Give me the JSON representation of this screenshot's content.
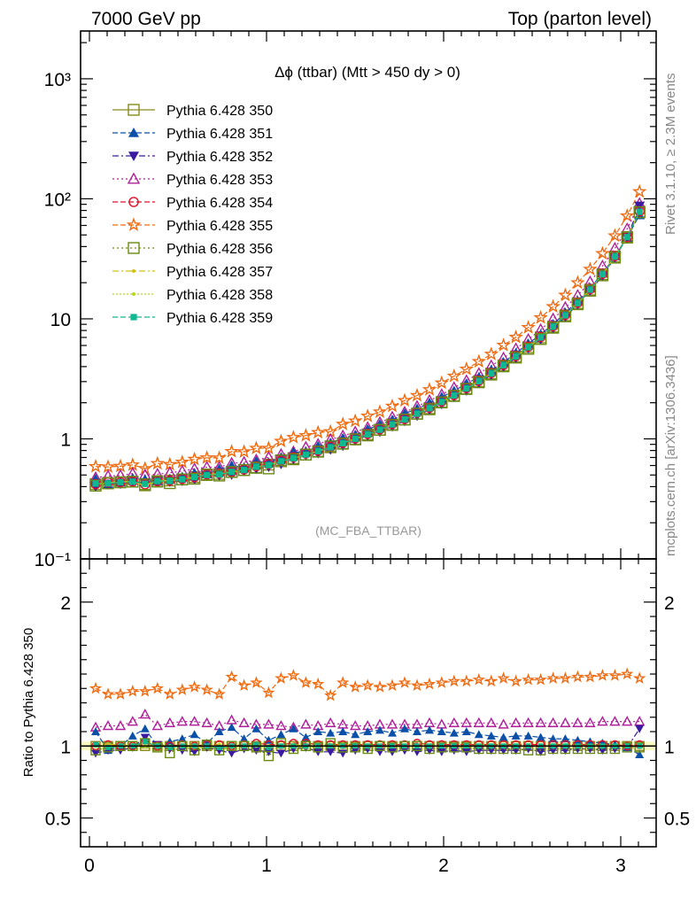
{
  "header": {
    "left": "7000 GeV pp",
    "right": "Top (parton level)"
  },
  "side_labels": {
    "rivet": "Rivet 3.1.10, ≥ 2.3M events",
    "mcplots": "mcplots.cern.ch [arXiv:1306.3436]"
  },
  "plot": {
    "title": "Δϕ (ttbar) (Mtt > 450 dy > 0)",
    "watermark": "(MC_FBA_TTBAR)"
  },
  "ratio": {
    "ylabel": "Ratio to Pythia 6.428 350"
  },
  "chart_data": {
    "type": "line",
    "title": "Δϕ (ttbar) (Mtt > 450 dy > 0)",
    "main_yscale": "log",
    "main_ylim": [
      0.1,
      2500
    ],
    "main_ytick_labels": [
      "10⁻¹",
      "1",
      "10",
      "10²",
      "10³"
    ],
    "ratio_ylim": [
      0.3,
      2.3
    ],
    "ratio_ytick_labels": [
      "0.5",
      "1",
      "2"
    ],
    "xlim": [
      -0.05,
      3.2
    ],
    "xtick_labels": [
      "0",
      "1",
      "2",
      "3"
    ],
    "x": [
      0.035,
      0.105,
      0.175,
      0.244,
      0.314,
      0.384,
      0.454,
      0.524,
      0.593,
      0.663,
      0.733,
      0.803,
      0.873,
      0.942,
      1.012,
      1.082,
      1.152,
      1.222,
      1.291,
      1.361,
      1.431,
      1.501,
      1.571,
      1.64,
      1.71,
      1.78,
      1.85,
      1.92,
      1.989,
      2.059,
      2.129,
      2.199,
      2.269,
      2.338,
      2.408,
      2.478,
      2.548,
      2.618,
      2.687,
      2.757,
      2.827,
      2.897,
      2.967,
      3.036,
      3.106
    ],
    "baseline_values": [
      0.42,
      0.43,
      0.435,
      0.44,
      0.41,
      0.445,
      0.45,
      0.46,
      0.48,
      0.5,
      0.51,
      0.53,
      0.55,
      0.58,
      0.61,
      0.65,
      0.69,
      0.74,
      0.79,
      0.85,
      0.92,
      1.0,
      1.09,
      1.19,
      1.32,
      1.45,
      1.62,
      1.8,
      2.03,
      2.3,
      2.63,
      3.02,
      3.5,
      4.1,
      4.85,
      5.8,
      7.0,
      8.6,
      10.7,
      13.5,
      17.5,
      23.5,
      33.0,
      48.0,
      78.0
    ],
    "legend_position": "top-left",
    "series": [
      {
        "name": "Pythia 6.428 350",
        "color": "#8a8a1e",
        "marker": "open-square",
        "dash": "",
        "ratio": [
          1.0,
          1.0,
          1.0,
          1.0,
          1.0,
          1.0,
          1.0,
          1.0,
          1.0,
          1.0,
          1.0,
          1.0,
          1.0,
          1.0,
          1.0,
          1.0,
          1.0,
          1.0,
          1.0,
          1.0,
          1.0,
          1.0,
          1.0,
          1.0,
          1.0,
          1.0,
          1.0,
          1.0,
          1.0,
          1.0,
          1.0,
          1.0,
          1.0,
          1.0,
          1.0,
          1.0,
          1.0,
          1.0,
          1.0,
          1.0,
          1.0,
          1.0,
          1.0,
          1.0,
          1.0
        ]
      },
      {
        "name": "Pythia 6.428 351",
        "color": "#0a50a8",
        "marker": "filled-triangle-up",
        "dash": "6,3",
        "ratio": [
          1.1,
          0.97,
          1.0,
          1.07,
          1.12,
          1.0,
          1.03,
          1.05,
          1.08,
          1.02,
          1.1,
          1.13,
          1.05,
          1.12,
          1.04,
          1.08,
          1.12,
          1.06,
          1.1,
          1.09,
          1.1,
          1.08,
          1.1,
          1.11,
          1.09,
          1.12,
          1.1,
          1.11,
          1.1,
          1.09,
          1.1,
          1.08,
          1.07,
          1.06,
          1.07,
          1.07,
          1.06,
          1.05,
          1.05,
          1.04,
          1.03,
          1.02,
          1.01,
          0.99,
          0.94
        ]
      },
      {
        "name": "Pythia 6.428 352",
        "color": "#3a1aa0",
        "marker": "filled-triangle-down",
        "dash": "7,3,2,3",
        "ratio": [
          0.95,
          0.97,
          0.97,
          0.99,
          1.06,
          1.01,
          0.98,
          0.97,
          0.96,
          0.99,
          0.97,
          0.95,
          0.98,
          0.97,
          0.96,
          0.95,
          0.98,
          0.99,
          0.96,
          0.96,
          0.95,
          0.97,
          0.98,
          0.96,
          0.96,
          0.97,
          0.96,
          0.97,
          0.96,
          0.97,
          0.96,
          0.97,
          0.97,
          0.97,
          0.97,
          0.98,
          0.96,
          0.97,
          0.97,
          0.98,
          0.98,
          0.97,
          0.98,
          0.99,
          1.12
        ]
      },
      {
        "name": "Pythia 6.428 353",
        "color": "#b0209a",
        "marker": "open-triangle-up",
        "dash": "2,3",
        "ratio": [
          1.13,
          1.14,
          1.14,
          1.17,
          1.22,
          1.14,
          1.16,
          1.17,
          1.17,
          1.16,
          1.14,
          1.18,
          1.16,
          1.15,
          1.15,
          1.14,
          1.13,
          1.15,
          1.14,
          1.16,
          1.15,
          1.14,
          1.14,
          1.15,
          1.15,
          1.15,
          1.15,
          1.16,
          1.15,
          1.16,
          1.16,
          1.16,
          1.16,
          1.15,
          1.16,
          1.16,
          1.16,
          1.16,
          1.16,
          1.16,
          1.16,
          1.17,
          1.17,
          1.17,
          1.17
        ]
      },
      {
        "name": "Pythia 6.428 354",
        "color": "#e0102a",
        "marker": "open-circle",
        "dash": "6,3",
        "ratio": [
          1.0,
          1.01,
          1.0,
          1.0,
          1.02,
          1.0,
          1.0,
          1.01,
          1.0,
          1.01,
          1.01,
          1.0,
          1.01,
          1.02,
          1.01,
          1.01,
          1.02,
          1.02,
          1.01,
          1.01,
          1.01,
          1.01,
          1.01,
          1.01,
          1.01,
          1.01,
          1.02,
          1.01,
          1.01,
          1.01,
          1.01,
          1.01,
          1.01,
          1.01,
          1.01,
          1.01,
          1.01,
          1.01,
          1.01,
          1.01,
          1.01,
          1.01,
          1.01,
          1.0,
          1.01
        ]
      },
      {
        "name": "Pythia 6.428 355",
        "color": "#f06a10",
        "marker": "open-star",
        "dash": "6,3",
        "ratio": [
          1.4,
          1.36,
          1.36,
          1.38,
          1.38,
          1.4,
          1.36,
          1.39,
          1.41,
          1.39,
          1.36,
          1.48,
          1.42,
          1.44,
          1.37,
          1.47,
          1.49,
          1.44,
          1.43,
          1.35,
          1.44,
          1.41,
          1.42,
          1.41,
          1.42,
          1.44,
          1.42,
          1.43,
          1.44,
          1.45,
          1.45,
          1.46,
          1.45,
          1.47,
          1.45,
          1.46,
          1.46,
          1.47,
          1.47,
          1.48,
          1.48,
          1.49,
          1.49,
          1.5,
          1.47
        ]
      },
      {
        "name": "Pythia 6.428 356",
        "color": "#6a8a14",
        "marker": "open-square",
        "dash": "2,3",
        "ratio": [
          0.97,
          0.99,
          1.0,
          1.0,
          1.02,
          0.99,
          0.95,
          1.0,
          0.97,
          1.01,
          0.97,
          1.0,
          1.0,
          0.99,
          0.93,
          1.02,
          0.98,
          1.0,
          0.99,
          1.02,
          0.99,
          0.99,
          0.98,
          1.0,
          0.99,
          1.0,
          1.0,
          0.98,
          0.99,
          0.99,
          0.99,
          0.98,
          0.98,
          0.98,
          0.98,
          0.97,
          0.97,
          0.98,
          0.98,
          0.98,
          0.98,
          0.98,
          0.98,
          0.99,
          0.99
        ]
      },
      {
        "name": "Pythia 6.428 357",
        "color": "#d4c010",
        "marker": "small-circle",
        "dash": "7,3,2,3",
        "ratio": [
          1.0,
          1.01,
          1.01,
          1.0,
          1.0,
          1.01,
          1.0,
          1.0,
          1.01,
          1.0,
          1.01,
          1.0,
          1.0,
          1.01,
          1.0,
          1.0,
          1.01,
          1.0,
          1.0,
          1.0,
          1.01,
          1.0,
          1.0,
          1.0,
          1.0,
          1.0,
          1.0,
          1.0,
          1.0,
          1.0,
          1.0,
          1.0,
          1.0,
          1.0,
          1.0,
          1.0,
          1.0,
          1.0,
          1.0,
          1.0,
          1.0,
          1.0,
          1.0,
          1.0,
          1.0
        ]
      },
      {
        "name": "Pythia 6.428 358",
        "color": "#b4d820",
        "marker": "small-circle",
        "dash": "2,2",
        "ratio": [
          1.0,
          0.99,
          1.0,
          1.01,
          1.0,
          0.99,
          1.0,
          1.0,
          0.99,
          1.0,
          1.0,
          0.99,
          1.0,
          1.0,
          0.99,
          1.0,
          1.0,
          0.99,
          1.0,
          1.0,
          1.0,
          1.0,
          1.0,
          1.0,
          1.0,
          1.0,
          1.0,
          1.0,
          1.0,
          1.0,
          1.0,
          1.0,
          1.0,
          1.0,
          1.0,
          1.0,
          1.0,
          1.0,
          1.0,
          1.0,
          1.0,
          1.0,
          1.0,
          1.0,
          1.0
        ]
      },
      {
        "name": "Pythia 6.428 359",
        "color": "#10b890",
        "marker": "filled-square-small",
        "dash": "6,3",
        "ratio": [
          1.01,
          0.99,
          1.0,
          1.0,
          1.03,
          1.0,
          0.99,
          1.0,
          1.0,
          1.0,
          0.99,
          1.0,
          1.0,
          1.01,
          0.99,
          1.0,
          1.0,
          1.0,
          1.0,
          1.0,
          1.0,
          1.0,
          1.0,
          1.0,
          1.0,
          1.0,
          1.0,
          1.0,
          1.0,
          1.0,
          1.0,
          1.0,
          1.0,
          1.0,
          1.0,
          1.0,
          1.0,
          1.0,
          1.0,
          1.0,
          1.0,
          1.0,
          1.0,
          1.0,
          1.0
        ]
      }
    ]
  }
}
